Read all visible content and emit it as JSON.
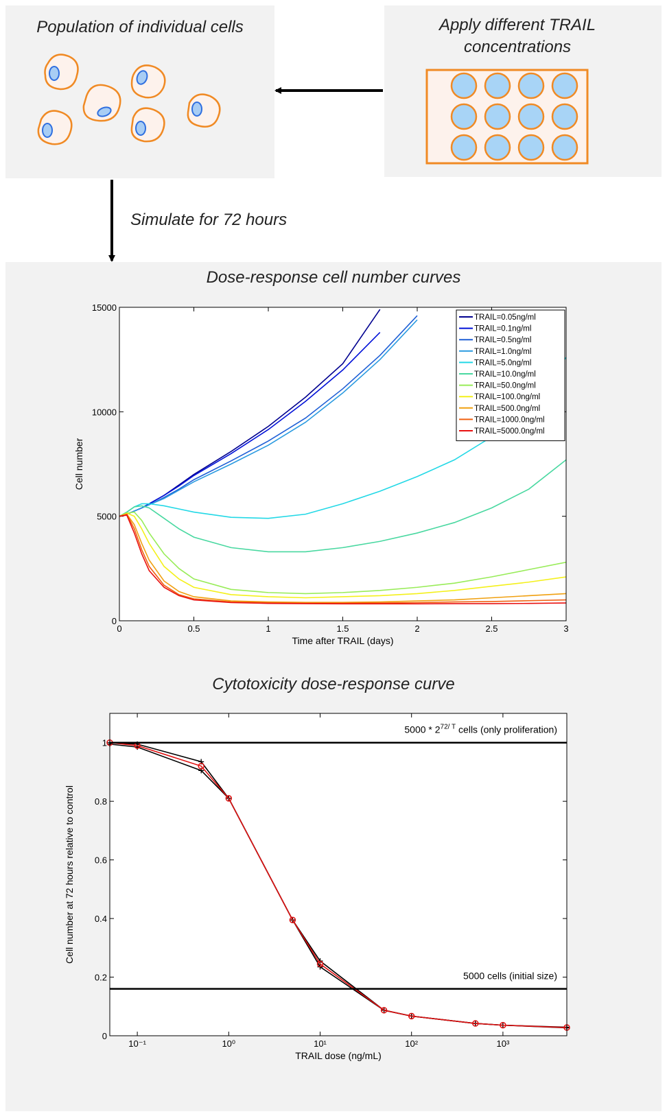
{
  "panels": {
    "population": "Population of individual cells",
    "apply": [
      "Apply different TRAIL",
      "concentrations"
    ],
    "simulate": "Simulate for 72 hours"
  },
  "chart_data": [
    {
      "type": "line",
      "title": "Dose-response cell number curves",
      "x_label": "Time after TRAIL (days)",
      "y_label": "Cell number",
      "x": [
        0,
        0.05,
        0.1,
        0.15,
        0.2,
        0.3,
        0.4,
        0.5,
        0.75,
        1,
        1.25,
        1.5,
        1.75,
        2,
        2.25,
        2.5,
        2.75,
        3
      ],
      "xlim": [
        0,
        3
      ],
      "xticks": [
        0,
        0.5,
        1,
        1.5,
        2,
        2.5,
        3
      ],
      "ylim": [
        0,
        15000
      ],
      "yticks": [
        0,
        5000,
        10000,
        15000
      ],
      "legend": "upper right",
      "series": [
        {
          "name": "TRAIL=0.05ng/ml",
          "color": "#00008f",
          "values": [
            5000,
            5100,
            5250,
            5400,
            5600,
            6000,
            6500,
            7000,
            8100,
            9300,
            10700,
            12300,
            14900,
            null,
            null,
            null,
            null,
            null
          ]
        },
        {
          "name": "TRAIL=0.1ng/ml",
          "color": "#0010d8",
          "values": [
            5000,
            5100,
            5250,
            5400,
            5600,
            6000,
            6450,
            6950,
            8000,
            9150,
            10500,
            12000,
            13800,
            null,
            null,
            null,
            null,
            null
          ]
        },
        {
          "name": "TRAIL=0.5ng/ml",
          "color": "#1e5fd6",
          "values": [
            5000,
            5100,
            5250,
            5400,
            5550,
            5900,
            6300,
            6750,
            7650,
            8600,
            9700,
            11100,
            12700,
            14600,
            null,
            null,
            null,
            null
          ]
        },
        {
          "name": "TRAIL=1.0ng/ml",
          "color": "#2a9ae0",
          "values": [
            5000,
            5100,
            5250,
            5400,
            5550,
            5850,
            6250,
            6650,
            7500,
            8400,
            9500,
            10900,
            12500,
            14400,
            null,
            null,
            null,
            null
          ]
        },
        {
          "name": "TRAIL=5.0ng/ml",
          "color": "#22d8e6",
          "values": [
            5000,
            5200,
            5450,
            5600,
            5600,
            5500,
            5350,
            5200,
            4950,
            4900,
            5100,
            5600,
            6200,
            6900,
            7700,
            8800,
            10300,
            12600
          ]
        },
        {
          "name": "TRAIL=10.0ng/ml",
          "color": "#48d8a0",
          "values": [
            5000,
            5200,
            5450,
            5500,
            5400,
            4900,
            4400,
            4000,
            3500,
            3300,
            3300,
            3500,
            3800,
            4200,
            4700,
            5400,
            6300,
            7700
          ]
        },
        {
          "name": "TRAIL=50.0ng/ml",
          "color": "#98ec58",
          "values": [
            5000,
            5150,
            5200,
            4800,
            4200,
            3200,
            2500,
            2000,
            1500,
            1350,
            1300,
            1350,
            1450,
            1600,
            1800,
            2100,
            2450,
            2800
          ]
        },
        {
          "name": "TRAIL=100.0ng/ml",
          "color": "#f4f01a",
          "values": [
            5000,
            5150,
            5000,
            4400,
            3700,
            2600,
            2000,
            1600,
            1250,
            1150,
            1100,
            1150,
            1200,
            1300,
            1450,
            1650,
            1850,
            2100
          ]
        },
        {
          "name": "TRAIL=500.0ng/ml",
          "color": "#f0a010",
          "values": [
            5000,
            5100,
            4600,
            3700,
            2900,
            1900,
            1400,
            1150,
            950,
            900,
            880,
            880,
            900,
            950,
            1000,
            1100,
            1200,
            1300
          ]
        },
        {
          "name": "TRAIL=1000.0ng/ml",
          "color": "#f06010",
          "values": [
            5000,
            5100,
            4400,
            3400,
            2600,
            1700,
            1250,
            1050,
            900,
            860,
            840,
            840,
            850,
            870,
            900,
            920,
            960,
            1000
          ]
        },
        {
          "name": "TRAIL=5000.0ng/ml",
          "color": "#e81010",
          "values": [
            5000,
            5050,
            4200,
            3200,
            2400,
            1600,
            1200,
            1000,
            870,
            830,
            820,
            810,
            810,
            810,
            820,
            820,
            830,
            850
          ]
        }
      ]
    },
    {
      "type": "line",
      "title": "Cytotoxicity dose-response curve",
      "x_label": "TRAIL dose (ng/mL)",
      "y_label": "Cell number at 72 hours relative to control",
      "log_x": true,
      "x": [
        0.05,
        0.1,
        0.5,
        1,
        5,
        10,
        50,
        100,
        500,
        1000,
        5000
      ],
      "xlim": [
        0.05,
        5000
      ],
      "xticks": [
        {
          "value": 0.1,
          "label": "10⁻¹"
        },
        {
          "value": 1,
          "label": "10⁰"
        },
        {
          "value": 10,
          "label": "10¹"
        },
        {
          "value": 100,
          "label": "10²"
        },
        {
          "value": 1000,
          "label": "10³"
        }
      ],
      "ylim": [
        0,
        1.1
      ],
      "yticks": [
        0,
        0.2,
        0.4,
        0.6,
        0.8,
        1
      ],
      "series": [
        {
          "color": "#000000",
          "marker": "plus",
          "values": [
            1.0,
            0.995,
            0.935,
            0.81,
            0.395,
            0.255,
            0.087,
            0.067,
            0.042,
            0.036,
            0.029
          ]
        },
        {
          "color": "#000000",
          "marker": "plus",
          "values": [
            0.995,
            0.985,
            0.905,
            0.81,
            0.395,
            0.235,
            0.087,
            0.067,
            0.042,
            0.036,
            0.027
          ]
        },
        {
          "color": "#e01010",
          "marker": "circle",
          "values": [
            1.0,
            0.99,
            0.92,
            0.81,
            0.395,
            0.245,
            0.087,
            0.067,
            0.042,
            0.036,
            0.028
          ]
        }
      ],
      "hlines": [
        {
          "value": 1,
          "text": "5000 * 2",
          "superscript": "72/ T",
          "suffix": " cells (only proliferation)"
        },
        {
          "value": 0.16,
          "text": "5000 cells (initial size)"
        }
      ]
    }
  ]
}
